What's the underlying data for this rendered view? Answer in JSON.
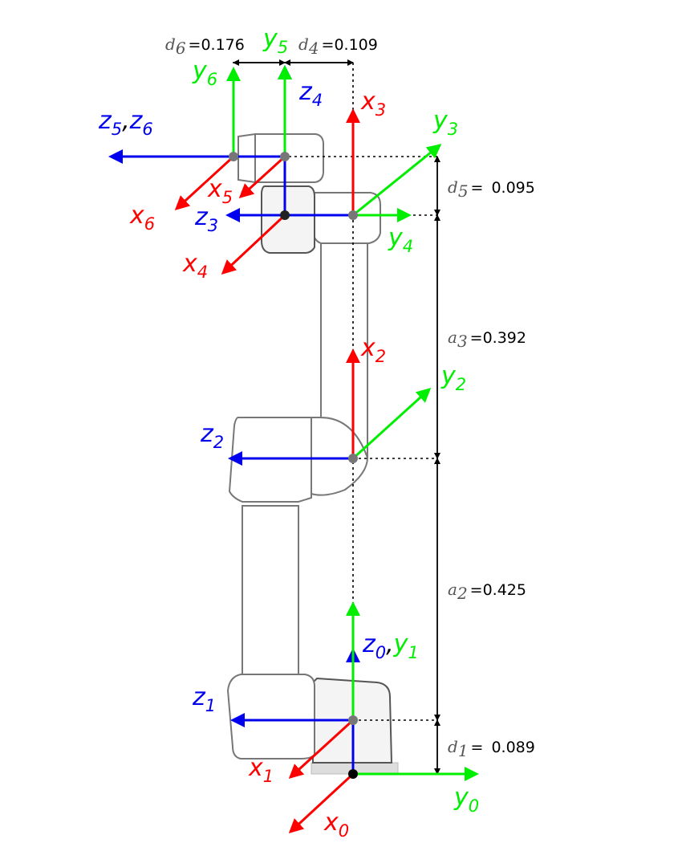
{
  "colors": {
    "x_axis": "#ff0000",
    "y_axis": "#00ee00",
    "z_axis": "#0000ee",
    "robot_outline": "#777777"
  },
  "frame_labels": {
    "x0": {
      "sym": "x",
      "sub": "0"
    },
    "y0": {
      "sym": "y",
      "sub": "0"
    },
    "z0y1": {
      "sym1": "z",
      "sub1": "0",
      "sep": ",",
      "sym2": "y",
      "sub2": "1"
    },
    "x1": {
      "sym": "x",
      "sub": "1"
    },
    "z1": {
      "sym": "z",
      "sub": "1"
    },
    "x2": {
      "sym": "x",
      "sub": "2"
    },
    "y2": {
      "sym": "y",
      "sub": "2"
    },
    "z2": {
      "sym": "z",
      "sub": "2"
    },
    "x3": {
      "sym": "x",
      "sub": "3"
    },
    "y3": {
      "sym": "y",
      "sub": "3"
    },
    "z3": {
      "sym": "z",
      "sub": "3"
    },
    "x4": {
      "sym": "x",
      "sub": "4"
    },
    "y4": {
      "sym": "y",
      "sub": "4"
    },
    "z4": {
      "sym": "z",
      "sub": "4"
    },
    "x5": {
      "sym": "x",
      "sub": "5"
    },
    "y5": {
      "sym": "y",
      "sub": "5"
    },
    "z5z6": {
      "sym1": "z",
      "sub1": "5",
      "sep": ",",
      "sym2": "z",
      "sub2": "6"
    },
    "x6": {
      "sym": "x",
      "sub": "6"
    },
    "y6": {
      "sym": "y",
      "sub": "6"
    }
  },
  "dimensions": {
    "d6": {
      "sym": "d",
      "sub": "6",
      "eq": "=",
      "value": "0.176"
    },
    "d4": {
      "sym": "d",
      "sub": "4",
      "eq": "=",
      "value": "0.109"
    },
    "d5": {
      "sym": "d",
      "sub": "5",
      "eq": "=",
      "value": "0.095"
    },
    "a3": {
      "sym": "a",
      "sub": "3",
      "eq": "=",
      "value": "0.392"
    },
    "a2": {
      "sym": "a",
      "sub": "2",
      "eq": "=",
      "value": "0.425"
    },
    "d1": {
      "sym": "d",
      "sub": "1",
      "eq": "=",
      "value": "0.089"
    }
  }
}
